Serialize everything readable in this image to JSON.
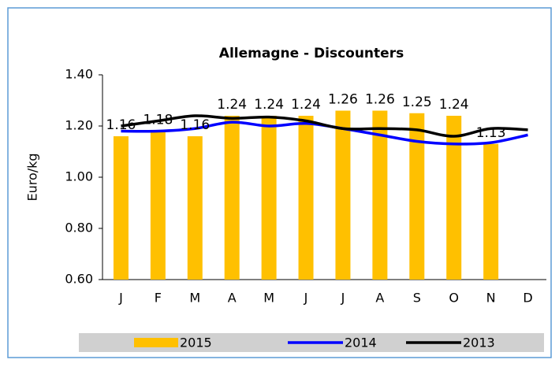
{
  "chart_data": {
    "type": "bar",
    "title": "Allemagne - Discounters",
    "y_label": "Euro/kg",
    "categories": [
      "J",
      "F",
      "M",
      "A",
      "M",
      "J",
      "J",
      "A",
      "S",
      "O",
      "N",
      "D"
    ],
    "series": [
      {
        "name": "2015",
        "type": "bar",
        "color": "#FFC000",
        "values": [
          1.16,
          1.18,
          1.16,
          1.24,
          1.24,
          1.24,
          1.26,
          1.26,
          1.25,
          1.24,
          1.13,
          null
        ]
      },
      {
        "name": "2014",
        "type": "line",
        "color": "#0000FF",
        "values": [
          1.18,
          1.18,
          1.19,
          1.215,
          1.2,
          1.21,
          1.19,
          1.165,
          1.14,
          1.13,
          1.135,
          1.165
        ]
      },
      {
        "name": "2013",
        "type": "line",
        "color": "#000000",
        "values": [
          1.2,
          1.22,
          1.24,
          1.23,
          1.235,
          1.22,
          1.19,
          1.19,
          1.185,
          1.16,
          1.19,
          1.185
        ]
      }
    ],
    "ylim": [
      0.6,
      1.4
    ],
    "yticks": [
      {
        "value": 0.6,
        "label": "0.60"
      },
      {
        "value": 0.8,
        "label": "0.80"
      },
      {
        "value": 1.0,
        "label": "1.00"
      },
      {
        "value": 1.2,
        "label": "1.20"
      },
      {
        "value": 1.4,
        "label": "1.40"
      }
    ]
  }
}
